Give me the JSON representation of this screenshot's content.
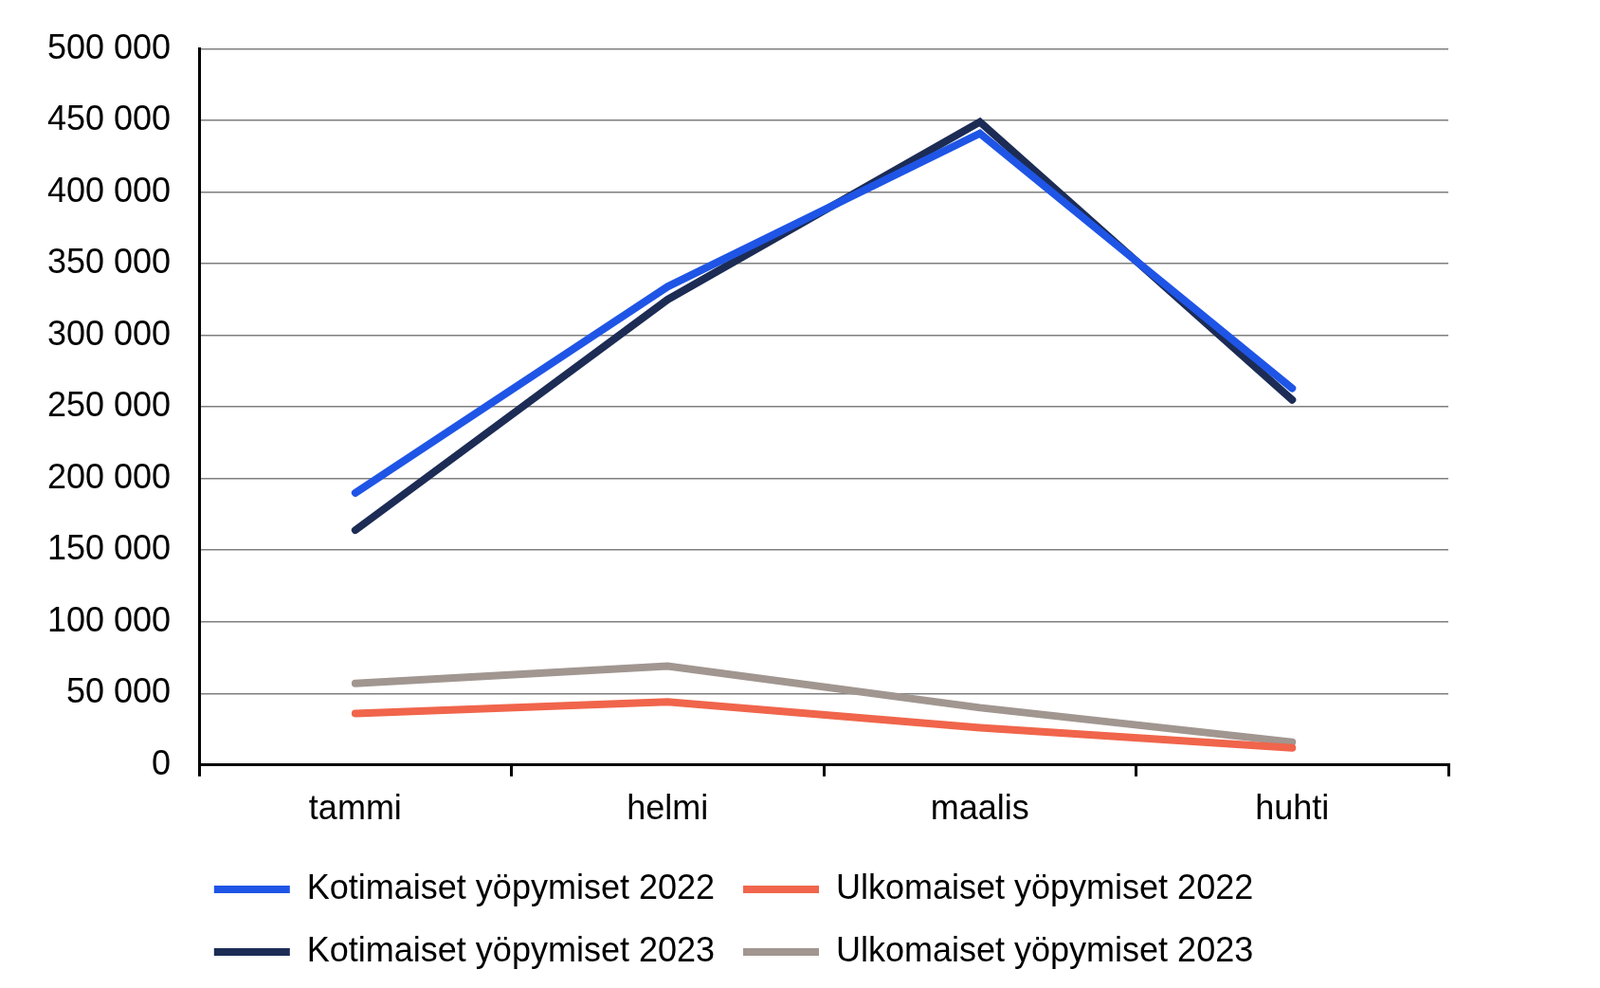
{
  "chart_data": {
    "type": "line",
    "categories": [
      "tammi",
      "helmi",
      "maalis",
      "huhti"
    ],
    "series": [
      {
        "name": "Kotimaiset yöpymiset 2022",
        "color": "#1f55e6",
        "values": [
          190000,
          334000,
          441000,
          263000
        ]
      },
      {
        "name": "Ulkomaiset yöpymiset 2022",
        "color": "#f0654b",
        "values": [
          36000,
          44000,
          26000,
          12000
        ]
      },
      {
        "name": "Kotimaiset yöpymiset 2023",
        "color": "#1c2c55",
        "values": [
          164000,
          325000,
          449000,
          255000
        ]
      },
      {
        "name": "Ulkomaiset yöpymiset 2023",
        "color": "#a19690",
        "values": [
          57000,
          69000,
          40000,
          16000
        ]
      }
    ],
    "ylim": [
      0,
      500000
    ],
    "yticks": [
      0,
      {
        "value": 50000,
        "label": "50 000"
      },
      {
        "value": 100000,
        "label": "100 000"
      },
      {
        "value": 150000,
        "label": "150 000"
      },
      {
        "value": 200000,
        "label": "200 000"
      },
      {
        "value": 250000,
        "label": "250 000"
      },
      {
        "value": 300000,
        "label": "300 000"
      },
      {
        "value": 350000,
        "label": "350 000"
      },
      {
        "value": 400000,
        "label": "400 000"
      },
      {
        "value": 450000,
        "label": "450 000"
      },
      {
        "value": 500000,
        "label": "500 000"
      }
    ],
    "grid": true,
    "legend": "bottom"
  }
}
